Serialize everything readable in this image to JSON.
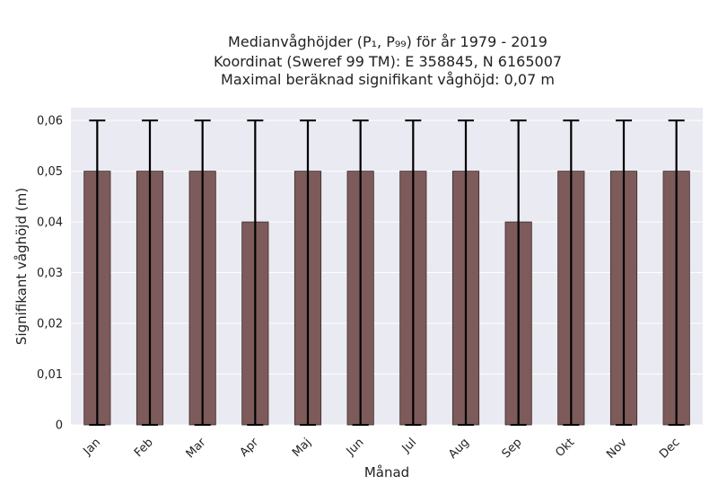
{
  "chart_data": {
    "type": "bar",
    "title_lines": [
      "Medianvåghöjder (P₁, P₉₉) för år 1979 - 2019",
      "Koordinat (Sweref 99 TM): E 358845, N 6165007",
      "Maximal beräknad signifikant våghöjd: 0,07 m"
    ],
    "xlabel": "Månad",
    "ylabel": "Signifikant våghöjd (m)",
    "categories": [
      "Jan",
      "Feb",
      "Mar",
      "Apr",
      "Maj",
      "Jun",
      "Jul",
      "Aug",
      "Sep",
      "Okt",
      "Nov",
      "Dec"
    ],
    "values": [
      0.05,
      0.05,
      0.05,
      0.04,
      0.05,
      0.05,
      0.05,
      0.05,
      0.04,
      0.05,
      0.05,
      0.05
    ],
    "error_low": [
      0,
      0,
      0,
      0,
      0,
      0,
      0,
      0,
      0,
      0,
      0,
      0
    ],
    "error_high": [
      0.06,
      0.06,
      0.06,
      0.06,
      0.06,
      0.06,
      0.06,
      0.06,
      0.06,
      0.06,
      0.06,
      0.06
    ],
    "ylim": [
      0,
      0.0625
    ],
    "yticks": [
      0,
      0.01,
      0.02,
      0.03,
      0.04,
      0.05,
      0.06
    ],
    "ytick_labels": [
      "0",
      "0,01",
      "0,02",
      "0,03",
      "0,04",
      "0,05",
      "0,06"
    ],
    "grid": true,
    "colors": {
      "bar": "#7d5b5b",
      "bar_edge": "#3a2a2a",
      "plot_bg": "#eaeaf2",
      "grid": "#ffffff",
      "errorbar": "#000000"
    }
  }
}
